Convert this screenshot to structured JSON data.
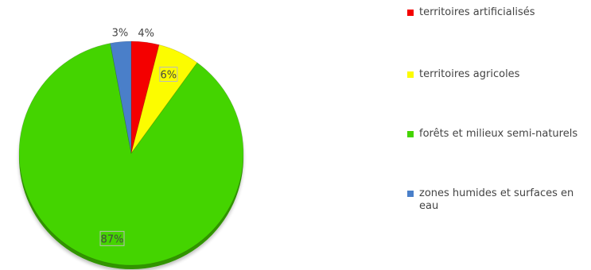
{
  "chart_data": {
    "type": "pie",
    "title": "",
    "slices": [
      {
        "label": "territoires artificialisés",
        "value": 4,
        "display": "4%",
        "color": "#f40000"
      },
      {
        "label": "territoires agricoles",
        "value": 6,
        "display": "6%",
        "color": "#fcfc00"
      },
      {
        "label": "forêts et milieux semi-naturels",
        "value": 87,
        "display": "87%",
        "color": "#44d400"
      },
      {
        "label": "zones humides et surfaces en eau",
        "value": 3,
        "display": "3%",
        "color": "#4a7fc9"
      }
    ],
    "legend_position": "right",
    "start_angle": "12 o'clock",
    "direction": "clockwise"
  }
}
